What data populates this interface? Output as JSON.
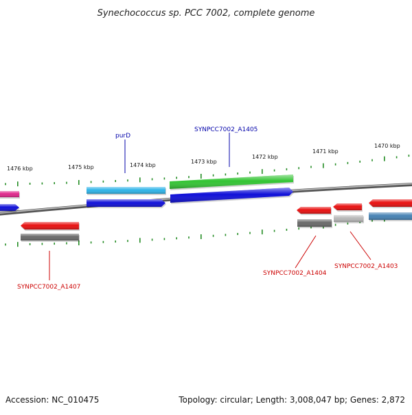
{
  "title": "Synechococcus sp. PCC 7002, complete genome",
  "footer": {
    "accession": "Accession: NC_010475",
    "summary": "Topology: circular; Length: 3,008,047 bp; Genes: 2,872"
  },
  "colors": {
    "backbone": "#8a8a8a",
    "tick": "#228b22",
    "label_blue": "#0000aa",
    "label_red": "#cc0000"
  },
  "ticks": [
    "1476 kbp",
    "1475 kbp",
    "1474 kbp",
    "1473 kbp",
    "1472 kbp",
    "1471 kbp",
    "1470 kbp"
  ],
  "labels": [
    {
      "text": "purD",
      "color": "blue"
    },
    {
      "text": "SYNPCC7002_A1405",
      "color": "blue"
    },
    {
      "text": "SYNPCC7002_A1407",
      "color": "red"
    },
    {
      "text": "SYNPCC7002_A1404",
      "color": "red"
    },
    {
      "text": "SYNPCC7002_A1403",
      "color": "red"
    }
  ],
  "features": [
    {
      "name": "pink-feature",
      "color": "#e0288c"
    },
    {
      "name": "blue-feature-left",
      "color": "#1010d8"
    },
    {
      "name": "purd-cyan",
      "color": "#2fb4e8"
    },
    {
      "name": "purd-blue",
      "color": "#1010d8"
    },
    {
      "name": "a1405-green",
      "color": "#33c433"
    },
    {
      "name": "a1405-blue",
      "color": "#1010d8"
    },
    {
      "name": "a1407-red",
      "color": "#e81010"
    },
    {
      "name": "a1407-gray",
      "color": "#6a6a6a"
    },
    {
      "name": "a1404-red",
      "color": "#e81010"
    },
    {
      "name": "a1404-gray",
      "color": "#6a6a6a"
    },
    {
      "name": "a1403-red",
      "color": "#e81010"
    },
    {
      "name": "a1403-gray",
      "color": "#b8b8b8"
    },
    {
      "name": "right-red",
      "color": "#e81010"
    },
    {
      "name": "right-steel",
      "color": "#4682b4"
    }
  ]
}
